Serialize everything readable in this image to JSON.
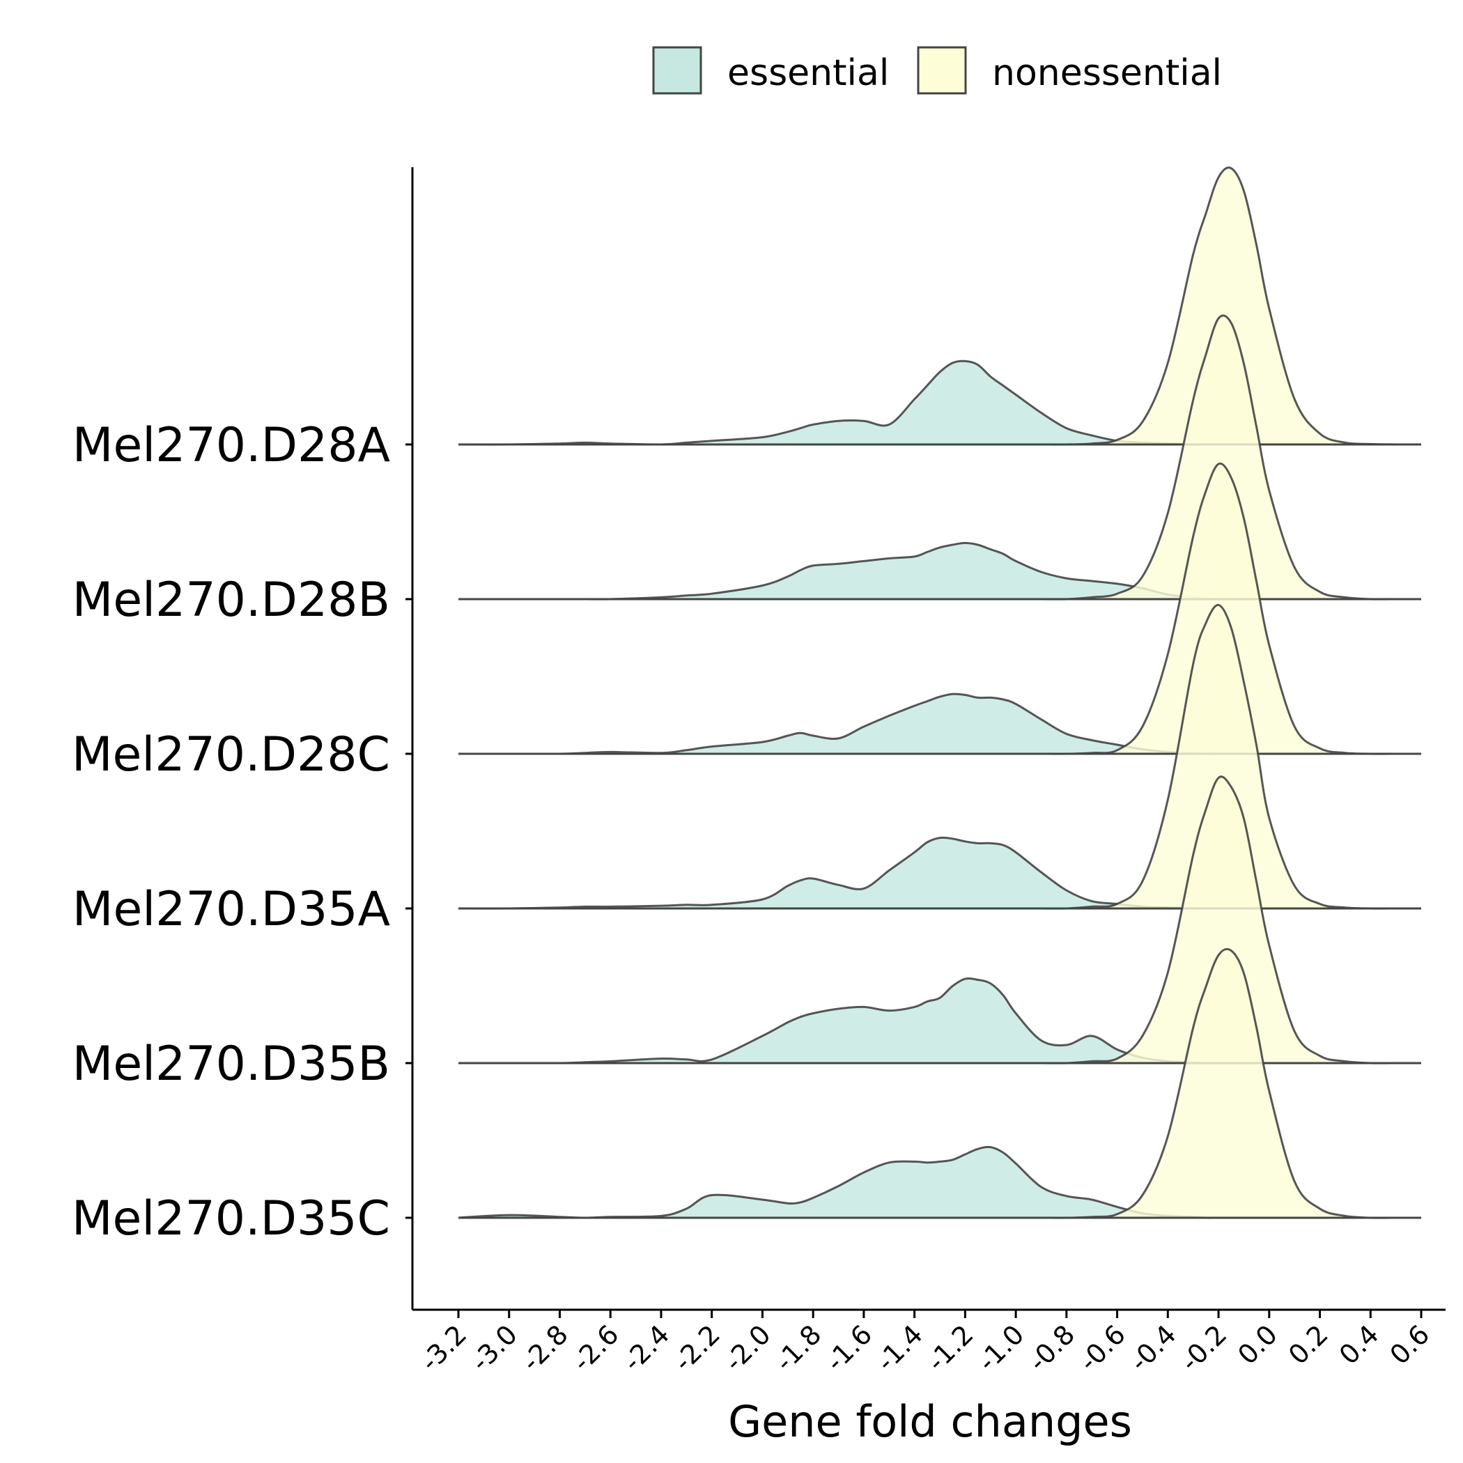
{
  "chart_data": {
    "type": "ridgeline-density",
    "title": "",
    "xlabel": "Gene fold changes",
    "ylabel": "",
    "xlim": [
      -3.2,
      0.6
    ],
    "x_ticks": [
      "-3.2",
      "-3.0",
      "-2.8",
      "-2.6",
      "-2.4",
      "-2.2",
      "-2.0",
      "-1.8",
      "-1.6",
      "-1.4",
      "-1.2",
      "-1.0",
      "-0.8",
      "-0.6",
      "-0.4",
      "-0.2",
      "0.0",
      "0.2",
      "0.4",
      "0.6"
    ],
    "legend": {
      "position": "top",
      "entries": [
        "essential",
        "nonessential"
      ]
    },
    "colors": {
      "essential": "#c6e8e1",
      "nonessential": "#fdfdd8",
      "outline": "#444444"
    },
    "categories": [
      "Mel270.D28A",
      "Mel270.D28B",
      "Mel270.D28C",
      "Mel270.D35A",
      "Mel270.D35B",
      "Mel270.D35C"
    ],
    "x": [
      -3.2,
      -3.0,
      -2.8,
      -2.7,
      -2.6,
      -2.4,
      -2.3,
      -2.2,
      -2.0,
      -1.9,
      -1.85,
      -1.8,
      -1.7,
      -1.6,
      -1.5,
      -1.4,
      -1.35,
      -1.3,
      -1.25,
      -1.2,
      -1.15,
      -1.1,
      -1.05,
      -1.0,
      -0.9,
      -0.8,
      -0.7,
      -0.6,
      -0.5,
      -0.4,
      -0.3,
      -0.25,
      -0.2,
      -0.15,
      -0.1,
      -0.05,
      0.0,
      0.1,
      0.2,
      0.3,
      0.4,
      0.5
    ],
    "series": [
      {
        "name": "essential",
        "groups": [
          [
            0,
            0,
            0.01,
            0.02,
            0.01,
            0,
            0.02,
            0.04,
            0.08,
            0.14,
            0.18,
            0.22,
            0.26,
            0.26,
            0.22,
            0.5,
            0.65,
            0.8,
            0.9,
            0.92,
            0.88,
            0.75,
            0.65,
            0.55,
            0.35,
            0.18,
            0.1,
            0.04,
            0.02,
            0.01,
            0,
            0,
            0,
            0,
            0,
            0,
            0,
            0,
            0,
            0,
            0,
            0
          ],
          [
            0,
            0,
            0,
            0,
            0,
            0.02,
            0.04,
            0.06,
            0.15,
            0.25,
            0.32,
            0.37,
            0.39,
            0.42,
            0.45,
            0.47,
            0.52,
            0.57,
            0.6,
            0.62,
            0.6,
            0.55,
            0.5,
            0.42,
            0.3,
            0.23,
            0.2,
            0.17,
            0.12,
            0.05,
            0.02,
            0,
            0,
            0,
            0,
            0,
            0,
            0,
            0,
            0,
            0,
            0
          ],
          [
            0,
            0,
            0,
            0.01,
            0.02,
            0.01,
            0.04,
            0.08,
            0.13,
            0.2,
            0.23,
            0.2,
            0.17,
            0.3,
            0.42,
            0.53,
            0.58,
            0.63,
            0.66,
            0.65,
            0.62,
            0.62,
            0.6,
            0.55,
            0.38,
            0.22,
            0.15,
            0.1,
            0.05,
            0.02,
            0.01,
            0,
            0,
            0,
            0,
            0,
            0,
            0,
            0,
            0,
            0,
            0
          ],
          [
            0,
            0,
            0.01,
            0.02,
            0.02,
            0.03,
            0.04,
            0.04,
            0.1,
            0.25,
            0.31,
            0.33,
            0.26,
            0.22,
            0.42,
            0.62,
            0.73,
            0.78,
            0.77,
            0.74,
            0.72,
            0.72,
            0.7,
            0.62,
            0.4,
            0.2,
            0.08,
            0.05,
            0.02,
            0.01,
            0,
            0,
            0,
            0,
            0,
            0,
            0,
            0,
            0,
            0,
            0,
            0
          ],
          [
            0,
            0,
            0,
            0.01,
            0.02,
            0.05,
            0.04,
            0.04,
            0.3,
            0.45,
            0.51,
            0.55,
            0.6,
            0.62,
            0.58,
            0.62,
            0.68,
            0.72,
            0.85,
            0.93,
            0.92,
            0.88,
            0.75,
            0.55,
            0.25,
            0.2,
            0.3,
            0.15,
            0.06,
            0.02,
            0.01,
            0,
            0,
            0,
            0,
            0,
            0,
            0,
            0,
            0,
            0,
            0
          ],
          [
            0,
            0.03,
            0.01,
            0,
            0.01,
            0.02,
            0.1,
            0.25,
            0.2,
            0.16,
            0.17,
            0.22,
            0.35,
            0.5,
            0.61,
            0.62,
            0.61,
            0.62,
            0.64,
            0.7,
            0.76,
            0.78,
            0.72,
            0.6,
            0.34,
            0.24,
            0.2,
            0.12,
            0.05,
            0.02,
            0.01,
            0,
            0,
            0,
            0,
            0,
            0,
            0,
            0,
            0,
            0,
            0
          ]
        ]
      },
      {
        "name": "nonessential",
        "groups": [
          [
            0,
            0,
            0,
            0,
            0,
            0,
            0,
            0,
            0,
            0,
            0,
            0,
            0,
            0,
            0,
            0,
            0,
            0,
            0,
            0,
            0,
            0,
            0,
            0,
            0,
            0,
            0.01,
            0.05,
            0.25,
            0.9,
            2.1,
            2.55,
            2.95,
            3.05,
            2.8,
            2.2,
            1.5,
            0.5,
            0.12,
            0.02,
            0.005,
            0
          ],
          [
            0,
            0,
            0,
            0,
            0,
            0,
            0,
            0,
            0,
            0,
            0,
            0,
            0,
            0,
            0,
            0,
            0,
            0,
            0,
            0,
            0,
            0,
            0,
            0,
            0,
            0,
            0.02,
            0.06,
            0.25,
            0.95,
            2.2,
            2.7,
            3.1,
            3.05,
            2.6,
            1.9,
            1.2,
            0.35,
            0.08,
            0.02,
            0,
            0
          ],
          [
            0,
            0,
            0,
            0,
            0,
            0,
            0,
            0,
            0,
            0,
            0,
            0,
            0,
            0,
            0,
            0,
            0,
            0,
            0,
            0,
            0,
            0,
            0,
            0,
            0,
            0,
            0.01,
            0.04,
            0.3,
            1.1,
            2.4,
            2.9,
            3.2,
            3.05,
            2.6,
            1.9,
            1.2,
            0.3,
            0.06,
            0.01,
            0,
            0
          ],
          [
            0,
            0,
            0,
            0,
            0,
            0,
            0,
            0,
            0,
            0,
            0,
            0,
            0,
            0,
            0,
            0,
            0,
            0,
            0,
            0,
            0,
            0,
            0,
            0,
            0,
            0,
            0.02,
            0.05,
            0.3,
            1.2,
            2.7,
            3.15,
            3.35,
            3.1,
            2.5,
            1.8,
            1.0,
            0.25,
            0.05,
            0.01,
            0,
            0
          ],
          [
            0,
            0,
            0,
            0,
            0,
            0,
            0,
            0,
            0,
            0,
            0,
            0,
            0,
            0,
            0,
            0,
            0,
            0,
            0,
            0,
            0,
            0,
            0,
            0,
            0,
            0,
            0.02,
            0.05,
            0.3,
            1.0,
            2.3,
            2.8,
            3.15,
            3.05,
            2.7,
            2.0,
            1.3,
            0.35,
            0.08,
            0.02,
            0,
            0
          ],
          [
            0,
            0,
            0,
            0,
            0,
            0,
            0,
            0,
            0,
            0,
            0,
            0,
            0,
            0,
            0,
            0,
            0,
            0,
            0,
            0,
            0,
            0,
            0,
            0,
            0,
            0,
            0.01,
            0.04,
            0.25,
            0.9,
            2.1,
            2.55,
            2.9,
            2.95,
            2.7,
            2.1,
            1.4,
            0.4,
            0.1,
            0.02,
            0,
            0
          ]
        ]
      }
    ]
  }
}
